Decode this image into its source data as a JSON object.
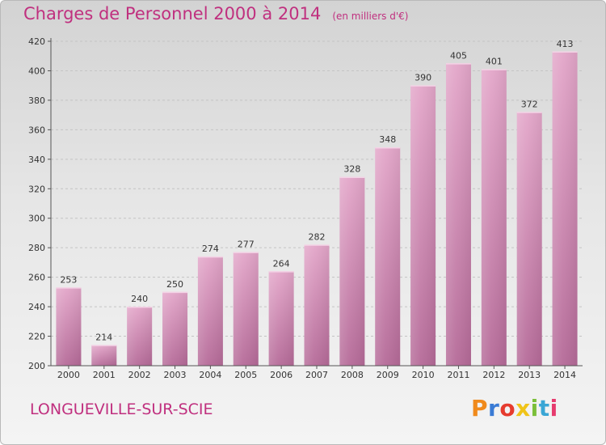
{
  "title": "Charges de Personnel 2000 à 2014",
  "subtitle": "(en milliers d'€)",
  "place": "LONGUEVILLE-SUR-SCIE",
  "logo": {
    "text": "Proxiti",
    "colors": [
      "#f08a1c",
      "#3a7bd5",
      "#e63b2e",
      "#f0c419",
      "#7bbf3a",
      "#3aa6d5",
      "#e63b6e"
    ]
  },
  "chart_data": {
    "type": "bar",
    "categories": [
      "2000",
      "2001",
      "2002",
      "2003",
      "2004",
      "2005",
      "2006",
      "2007",
      "2008",
      "2009",
      "2010",
      "2011",
      "2012",
      "2013",
      "2014"
    ],
    "values": [
      253,
      214,
      240,
      250,
      274,
      277,
      264,
      282,
      328,
      348,
      390,
      405,
      401,
      372,
      413
    ],
    "title": "Charges de Personnel 2000 à 2014",
    "ylim": [
      200,
      420
    ],
    "yticks": [
      200,
      220,
      240,
      260,
      280,
      300,
      320,
      340,
      360,
      380,
      400,
      420
    ],
    "grid": true,
    "bar_color": "#d88ab6"
  }
}
